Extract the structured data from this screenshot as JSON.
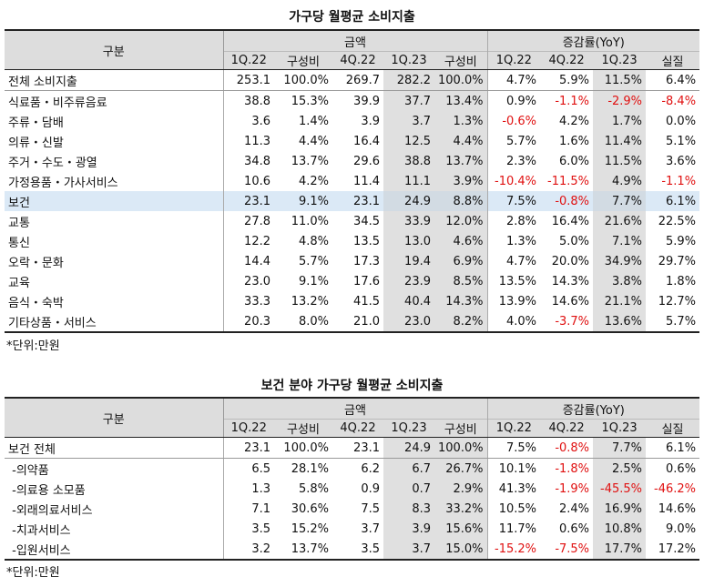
{
  "table1": {
    "title": "가구당 월평균 소비지출",
    "header_gubun": "구분",
    "header_amount": "금액",
    "header_change": "증감률(YoY)",
    "subheaders": [
      "1Q.22",
      "구성비",
      "4Q.22",
      "1Q.23",
      "구성비",
      "1Q.22",
      "4Q.22",
      "1Q.23",
      "실질"
    ],
    "rows": [
      [
        "전체 소비지출",
        "253.1",
        "100.0%",
        "269.7",
        "282.2",
        "100.0%",
        "4.7%",
        "5.9%",
        "11.5%",
        "6.4%"
      ],
      [
        "식료품・비주류음료",
        "38.8",
        "15.3%",
        "39.9",
        "37.7",
        "13.4%",
        "0.9%",
        "-1.1%",
        "-2.9%",
        "-8.4%"
      ],
      [
        "주류・담배",
        "3.6",
        "1.4%",
        "3.9",
        "3.7",
        "1.3%",
        "-0.6%",
        "4.2%",
        "1.7%",
        "0.0%"
      ],
      [
        "의류・신발",
        "11.3",
        "4.4%",
        "16.4",
        "12.5",
        "4.4%",
        "5.7%",
        "1.6%",
        "11.4%",
        "5.1%"
      ],
      [
        "주거・수도・광열",
        "34.8",
        "13.7%",
        "29.6",
        "38.8",
        "13.7%",
        "2.3%",
        "6.0%",
        "11.5%",
        "3.6%"
      ],
      [
        "가정용품・가사서비스",
        "10.6",
        "4.2%",
        "11.4",
        "11.1",
        "3.9%",
        "-10.4%",
        "-11.5%",
        "4.9%",
        "-1.1%"
      ],
      [
        "보건",
        "23.1",
        "9.1%",
        "23.1",
        "24.9",
        "8.8%",
        "7.5%",
        "-0.8%",
        "7.7%",
        "6.1%"
      ],
      [
        "교통",
        "27.8",
        "11.0%",
        "34.5",
        "33.9",
        "12.0%",
        "2.8%",
        "16.4%",
        "21.6%",
        "22.5%"
      ],
      [
        "통신",
        "12.2",
        "4.8%",
        "13.5",
        "13.0",
        "4.6%",
        "1.3%",
        "5.0%",
        "7.1%",
        "5.9%"
      ],
      [
        "오락・문화",
        "14.4",
        "5.7%",
        "17.3",
        "19.4",
        "6.9%",
        "4.7%",
        "20.0%",
        "34.9%",
        "29.7%"
      ],
      [
        "교육",
        "23.0",
        "9.1%",
        "17.6",
        "23.9",
        "8.5%",
        "13.5%",
        "14.3%",
        "3.8%",
        "1.8%"
      ],
      [
        "음식・숙박",
        "33.3",
        "13.2%",
        "41.5",
        "40.4",
        "14.3%",
        "13.9%",
        "14.6%",
        "21.1%",
        "12.7%"
      ],
      [
        "기타상품・서비스",
        "20.3",
        "8.0%",
        "21.0",
        "23.0",
        "8.2%",
        "4.0%",
        "-3.7%",
        "13.6%",
        "5.7%"
      ]
    ],
    "note": "*단위:만원"
  },
  "table2": {
    "title": "보건 분야 가구당 월평균 소비지출",
    "header_gubun": "구분",
    "header_amount": "금액",
    "header_change": "증감률(YoY)",
    "subheaders": [
      "1Q.22",
      "구성비",
      "4Q.22",
      "1Q.23",
      "구성비",
      "1Q.22",
      "4Q.22",
      "1Q.23",
      "실질"
    ],
    "rows": [
      [
        "보건 전체",
        "23.1",
        "100.0%",
        "23.1",
        "24.9",
        "100.0%",
        "7.5%",
        "-0.8%",
        "7.7%",
        "6.1%"
      ],
      [
        " -의약품",
        "6.5",
        "28.1%",
        "6.2",
        "6.7",
        "26.7%",
        "10.1%",
        "-1.8%",
        "2.5%",
        "0.6%"
      ],
      [
        " -의료용 소모품",
        "1.3",
        "5.8%",
        "0.9",
        "0.7",
        "2.9%",
        "41.3%",
        "-1.9%",
        "-45.5%",
        "-46.2%"
      ],
      [
        " -외래의료서비스",
        "7.1",
        "30.6%",
        "7.5",
        "8.3",
        "33.2%",
        "10.5%",
        "2.4%",
        "16.9%",
        "14.6%"
      ],
      [
        " -치과서비스",
        "3.5",
        "15.2%",
        "3.7",
        "3.9",
        "15.6%",
        "11.7%",
        "0.6%",
        "10.8%",
        "9.0%"
      ],
      [
        " -입원서비스",
        "3.2",
        "13.7%",
        "3.5",
        "3.7",
        "15.0%",
        "-15.2%",
        "-7.5%",
        "17.7%",
        "17.2%"
      ]
    ],
    "note": "*단위:만원"
  },
  "colors": {
    "negative": "#e01010",
    "header_bg": "#dddddd",
    "highlight_row": "#dbe9f6",
    "shaded_col": "#e0e0e0"
  }
}
